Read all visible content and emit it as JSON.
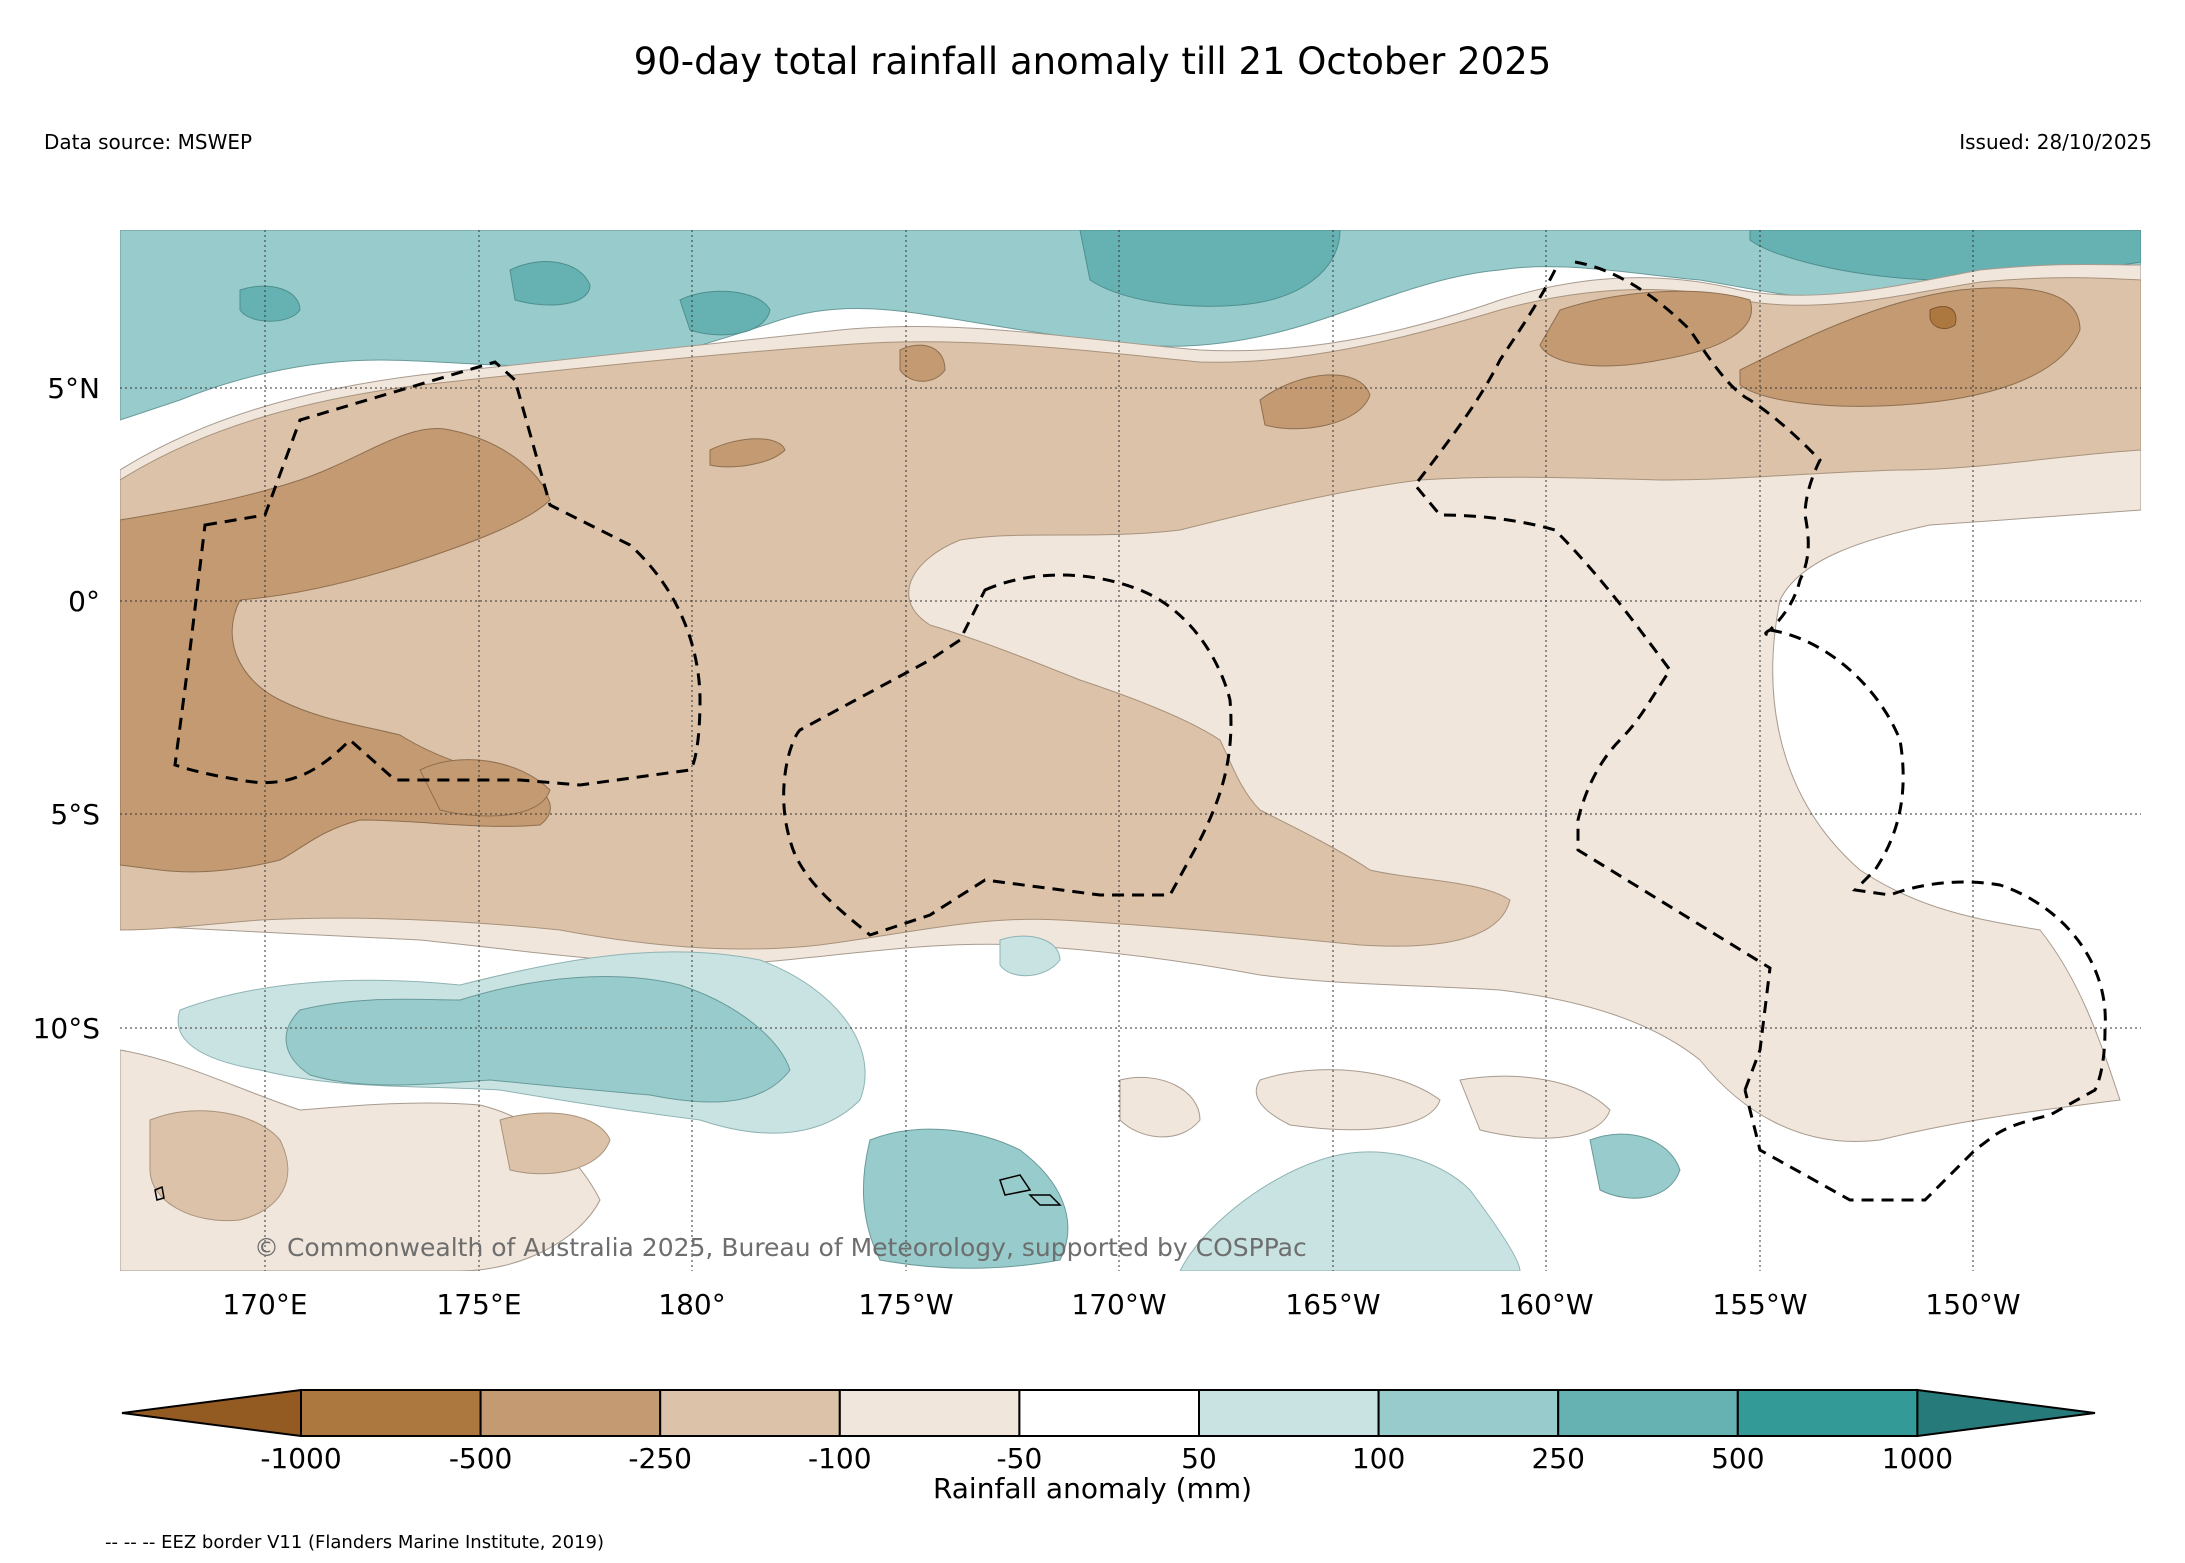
{
  "title": "90-day total rainfall anomaly till 21 October 2025",
  "data_source": "Data source: MSWEP",
  "issued": "Issued: 28/10/2025",
  "copyright": "© Commonwealth of Australia 2025, Bureau of Meteorology, supported by COSPPac",
  "lat_labels": [
    "5°N",
    "0°",
    "5°S",
    "10°S"
  ],
  "lon_labels": [
    "170°E",
    "175°E",
    "180°",
    "175°W",
    "170°W",
    "165°W",
    "160°W",
    "155°W",
    "150°W"
  ],
  "colorbar": {
    "title": "Rainfall anomaly (mm)",
    "tick_labels": [
      "-1000",
      "-500",
      "-250",
      "-100",
      "-50",
      "50",
      "100",
      "250",
      "500",
      "1000"
    ],
    "colors": [
      "#935a22",
      "#ad7840",
      "#c39a71",
      "#dbc2a8",
      "#f1e6dc",
      "#ffffff",
      "#c9e3e3",
      "#98cbcb",
      "#66b1b1",
      "#339a98",
      "#267b7a"
    ]
  },
  "legend_note": "-- -- -- EEZ border V11 (Flanders Marine Institute, 2019)"
}
